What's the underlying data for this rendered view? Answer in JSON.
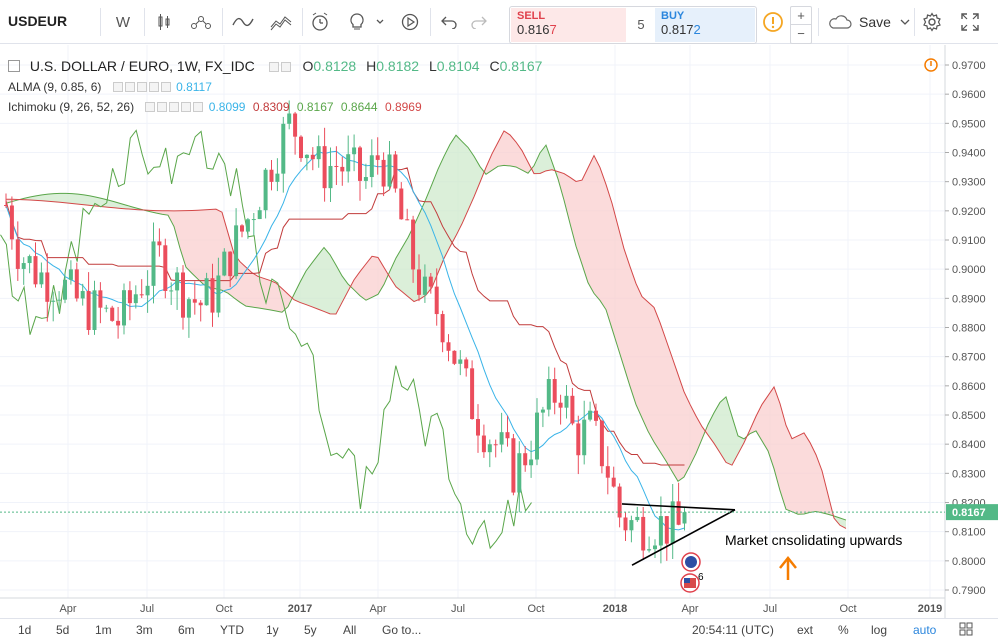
{
  "toolbar": {
    "symbol": "USDEUR",
    "interval": "W",
    "save_label": "Save",
    "trade": {
      "sell_label": "SELL",
      "sell_price_main": "0.816",
      "sell_price_tail": "7",
      "spread": "5",
      "buy_label": "BUY",
      "buy_price_main": "0.817",
      "buy_price_tail": "2"
    }
  },
  "legend": {
    "title": "U.S. DOLLAR / EURO, 1W, FX_IDC",
    "open_label": "O",
    "open": "0.8128",
    "high_label": "H",
    "high": "0.8182",
    "low_label": "L",
    "low": "0.8104",
    "close_label": "C",
    "close": "0.8167",
    "alma_label": "ALMA (9, 0.85, 6)",
    "alma_value": "0.8117",
    "ichimoku_label": "Ichimoku (9, 26, 52, 26)",
    "ichimoku_values": [
      "0.8099",
      "0.8309",
      "0.8167",
      "0.8644",
      "0.8969"
    ]
  },
  "price_axis": {
    "ticks": [
      "0.9700",
      "0.9600",
      "0.9500",
      "0.9400",
      "0.9300",
      "0.9200",
      "0.9100",
      "0.9000",
      "0.8900",
      "0.8800",
      "0.8700",
      "0.8600",
      "0.8500",
      "0.8400",
      "0.8300",
      "0.8200",
      "0.8100",
      "0.8000",
      "0.7900"
    ],
    "current_price": "0.8167"
  },
  "time_axis": [
    "Apr",
    "Jul",
    "Oct",
    "2017",
    "Apr",
    "Jul",
    "Oct",
    "2018",
    "Apr",
    "Jul",
    "Oct",
    "2019"
  ],
  "annotation": {
    "text": "Market cnsolidating upwards",
    "events_badge": "6"
  },
  "bottom_bar": {
    "ranges": [
      "1d",
      "5d",
      "1m",
      "3m",
      "6m",
      "YTD",
      "1y",
      "5y",
      "All"
    ],
    "goto_label": "Go to...",
    "time": "20:54:11 (UTC)",
    "ext": "ext",
    "pct": "%",
    "log": "log",
    "auto": "auto"
  },
  "colors": {
    "up": "#53b987",
    "down": "#eb4d5c",
    "alma": "#3ab4e8",
    "base": "#c13b3b",
    "span_a": "#5aa64a",
    "span_b": "#d34848",
    "cloud_green": "#cfe9cc",
    "cloud_red": "#f9cfcf",
    "trade_sell": "#e0414c",
    "trade_buy": "#2b86dd",
    "arrow": "#f57c00"
  },
  "chart_data": {
    "type": "candlestick",
    "symbol": "USDEUR",
    "timeframe": "1W",
    "ylim": [
      0.785,
      0.975
    ],
    "indicators": [
      "ALMA (9, 0.85, 6)",
      "Ichimoku (9, 26, 52, 26)"
    ],
    "last_bar": {
      "open": 0.8128,
      "high": 0.8182,
      "low": 0.8104,
      "close": 0.8167
    },
    "annotations": [
      "Market cnsolidating upwards",
      "converging triangle lines",
      "orange up arrow"
    ]
  }
}
